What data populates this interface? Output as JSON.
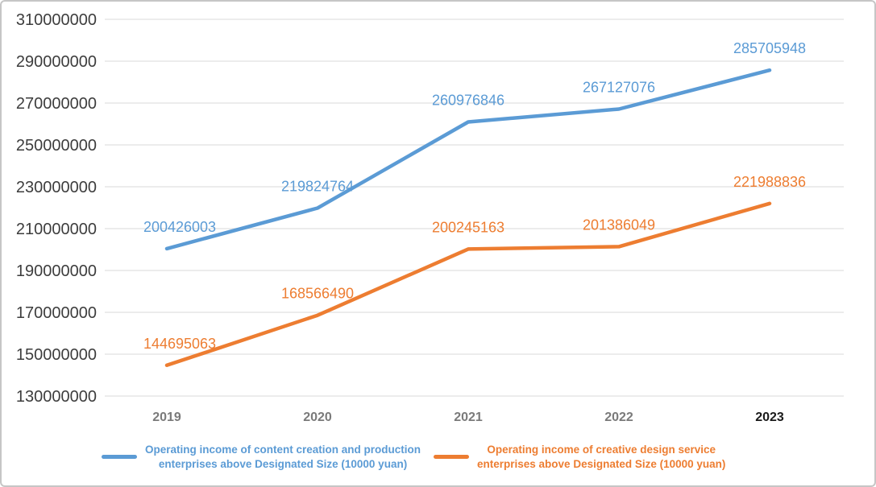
{
  "chart_data": {
    "type": "line",
    "title": "",
    "xlabel": "",
    "ylabel": "",
    "categories": [
      "2019",
      "2020",
      "2021",
      "2022",
      "2023"
    ],
    "highlighted_category": "2023",
    "series": [
      {
        "name": "Operating income of content creation and production enterprises above Designated Size (10000 yuan)",
        "color": "#5B9BD5",
        "values": [
          200426003,
          219824764,
          260976846,
          267127076,
          285705948
        ]
      },
      {
        "name": "Operating income of creative design service enterprises above Designated Size (10000 yuan)",
        "color": "#ED7D31",
        "values": [
          144695063,
          168566490,
          200245163,
          201386049,
          221988836
        ]
      }
    ],
    "ylim": [
      130000000,
      310000000
    ],
    "ytick_step": 20000000,
    "yticks": [
      "310000000",
      "290000000",
      "270000000",
      "250000000",
      "230000000",
      "210000000",
      "190000000",
      "170000000",
      "150000000",
      "130000000"
    ],
    "grid": true,
    "data_labels": true,
    "legend_position": "bottom"
  },
  "legend": {
    "items": [
      {
        "label_line1": "Operating income of content creation and production",
        "label_line2": "enterprises above Designated Size (10000 yuan)",
        "color": "#5B9BD5"
      },
      {
        "label_line1": "Operating income of creative design service",
        "label_line2": "enterprises above Designated Size (10000 yuan)",
        "color": "#ED7D31"
      }
    ]
  },
  "colors": {
    "series_blue": "#5B9BD5",
    "series_orange": "#ED7D31",
    "gridline": "#e5e5e5",
    "axis_label": "#3d3d3d",
    "x_label": "#7a7a7a",
    "x_label_highlighted": "#1a1a1a",
    "frame_border": "#c6c6c6",
    "background": "#ffffff"
  }
}
